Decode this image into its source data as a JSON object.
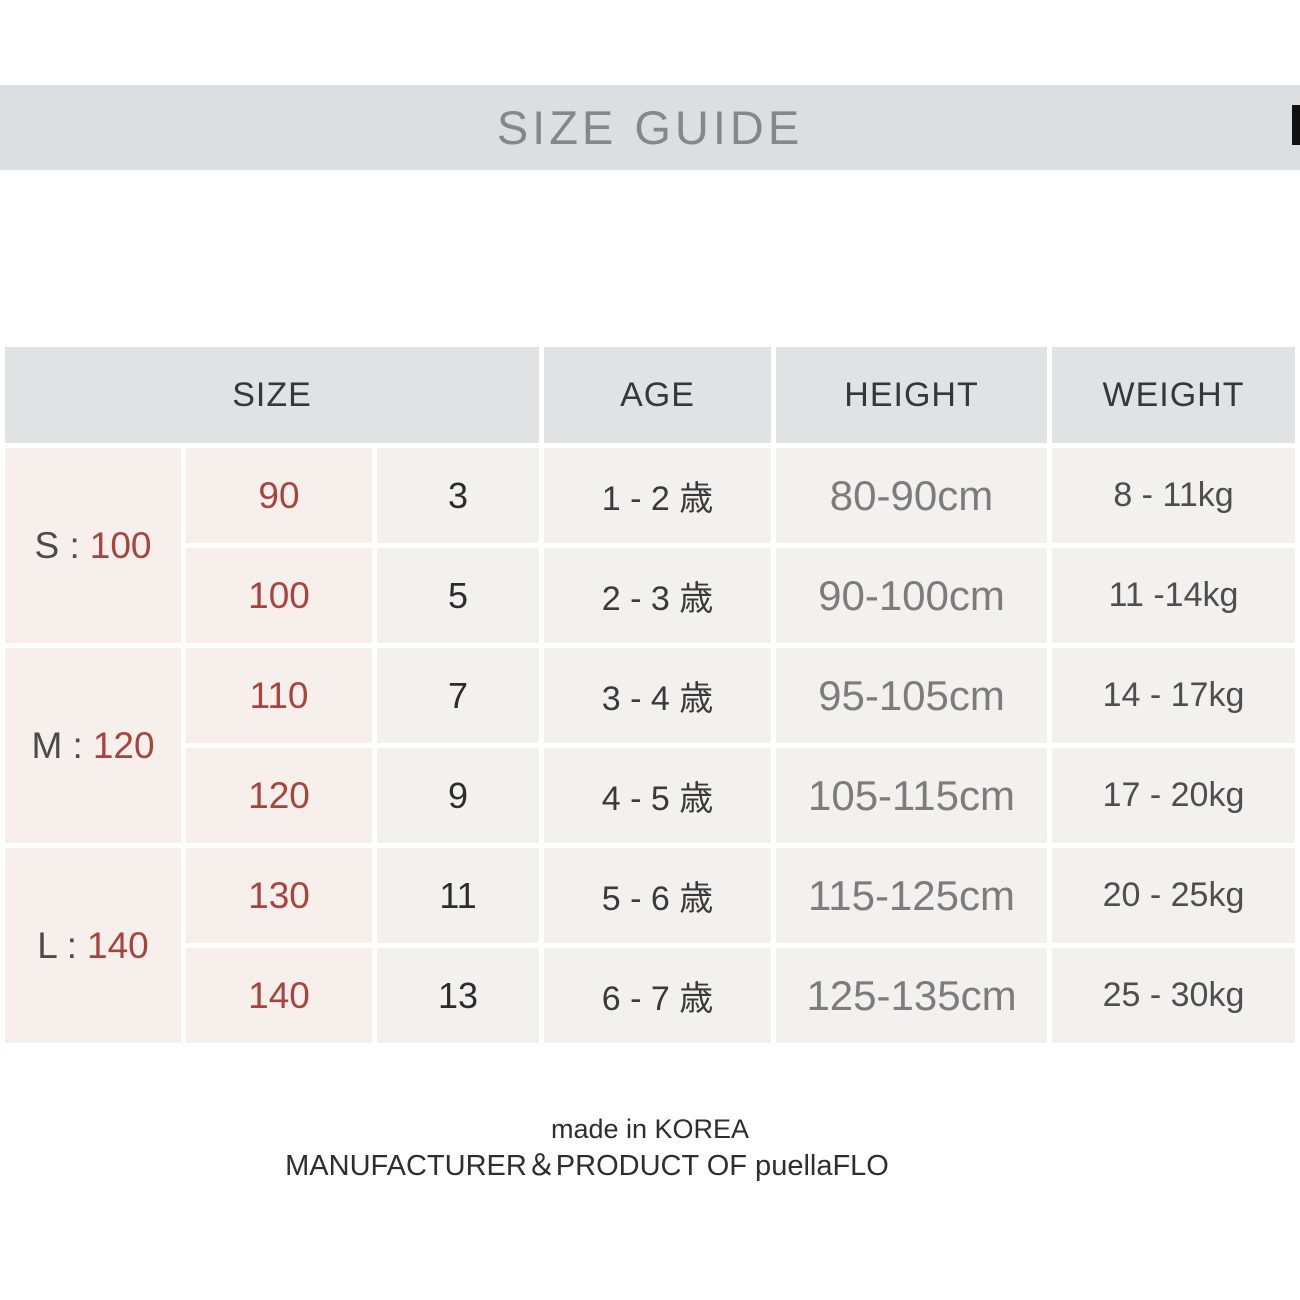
{
  "title": "SIZE GUIDE",
  "table": {
    "headers": {
      "size": "SIZE",
      "age": "AGE",
      "height": "HEIGHT",
      "weight": "WEIGHT"
    },
    "groups": [
      {
        "prefix": "S :",
        "value": "100"
      },
      {
        "prefix": "M :",
        "value": "120"
      },
      {
        "prefix": "L :",
        "value": "140"
      }
    ],
    "rows": [
      {
        "size": "90",
        "code": "3",
        "age": "1 - 2 歳",
        "height": "80-90cm",
        "weight": "8 - 11kg"
      },
      {
        "size": "100",
        "code": "5",
        "age": "2 - 3 歳",
        "height": "90-100cm",
        "weight": "11 -14kg"
      },
      {
        "size": "110",
        "code": "7",
        "age": "3 - 4 歳",
        "height": "95-105cm",
        "weight": "14 - 17kg"
      },
      {
        "size": "120",
        "code": "9",
        "age": "4 - 5 歳",
        "height": "105-115cm",
        "weight": "17 - 20kg"
      },
      {
        "size": "130",
        "code": "11",
        "age": "5 - 6 歳",
        "height": "115-125cm",
        "weight": "20 - 25kg"
      },
      {
        "size": "140",
        "code": "13",
        "age": "6 - 7 歳",
        "height": "125-135cm",
        "weight": "25 - 30kg"
      }
    ]
  },
  "footer": {
    "line1": "made in KOREA",
    "line2": "MANUFACTURER＆PRODUCT OF puellaFLO"
  },
  "colors": {
    "banner_bg": "#dcdfe1",
    "banner_text": "#85888b",
    "header_cell_bg": "#e0e2e4",
    "pink_cell_bg": "#f6efec",
    "plain_cell_bg": "#f3f1ee",
    "accent_red": "#a8433d",
    "scrollbar": "#111111"
  }
}
